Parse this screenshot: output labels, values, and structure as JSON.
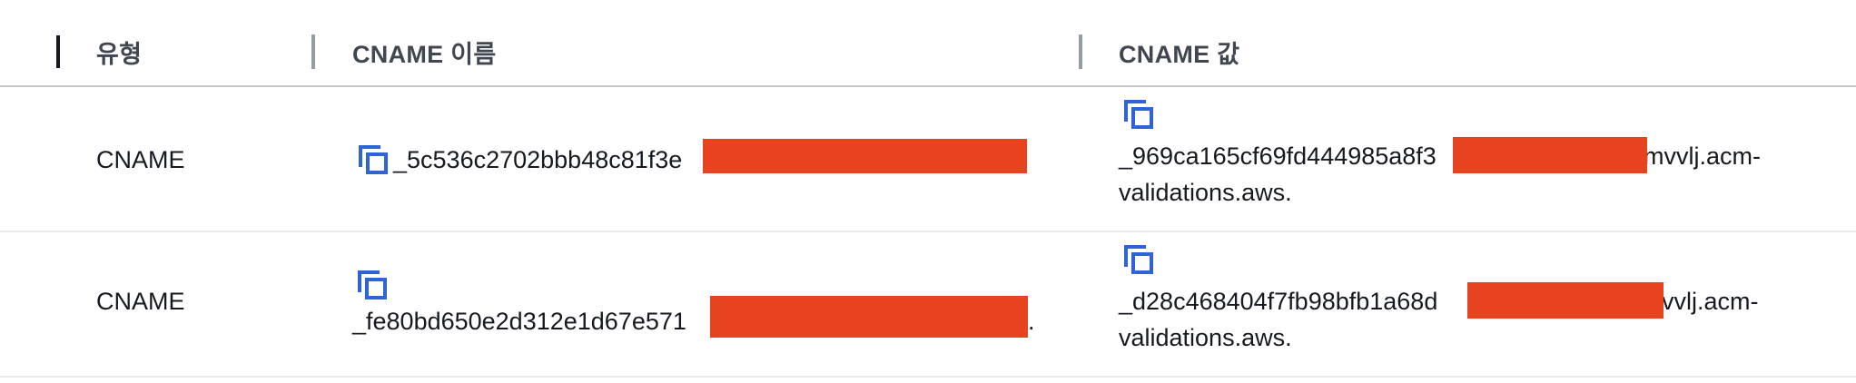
{
  "table": {
    "columns": [
      {
        "key": "type",
        "label": "유형"
      },
      {
        "key": "cname_name",
        "label": "CNAME 이름"
      },
      {
        "key": "cname_value",
        "label": "CNAME 값"
      }
    ],
    "rows": [
      {
        "type": "CNAME",
        "name_visible": "_5c536c2702bbb48c81f3e",
        "value_line1_start": "_969ca165cf69fd444985a8f3",
        "value_line1_end": "mvvlj.acm-",
        "value_line2": "validations.aws."
      },
      {
        "type": "CNAME",
        "name_visible": "_fe80bd650e2d312e1d67e571",
        "name_trailing": ".",
        "value_line1_start": "_d28c468404f7fb98bfb1a68d",
        "value_line1_end": "vvlj.acm-",
        "value_line2": "validations.aws."
      }
    ]
  },
  "colors": {
    "redaction": "#e8431f",
    "copy_icon": "#2f64d8",
    "header_text": "#414750",
    "body_text": "#16191f"
  },
  "icons": {
    "copy": "copy-icon"
  }
}
